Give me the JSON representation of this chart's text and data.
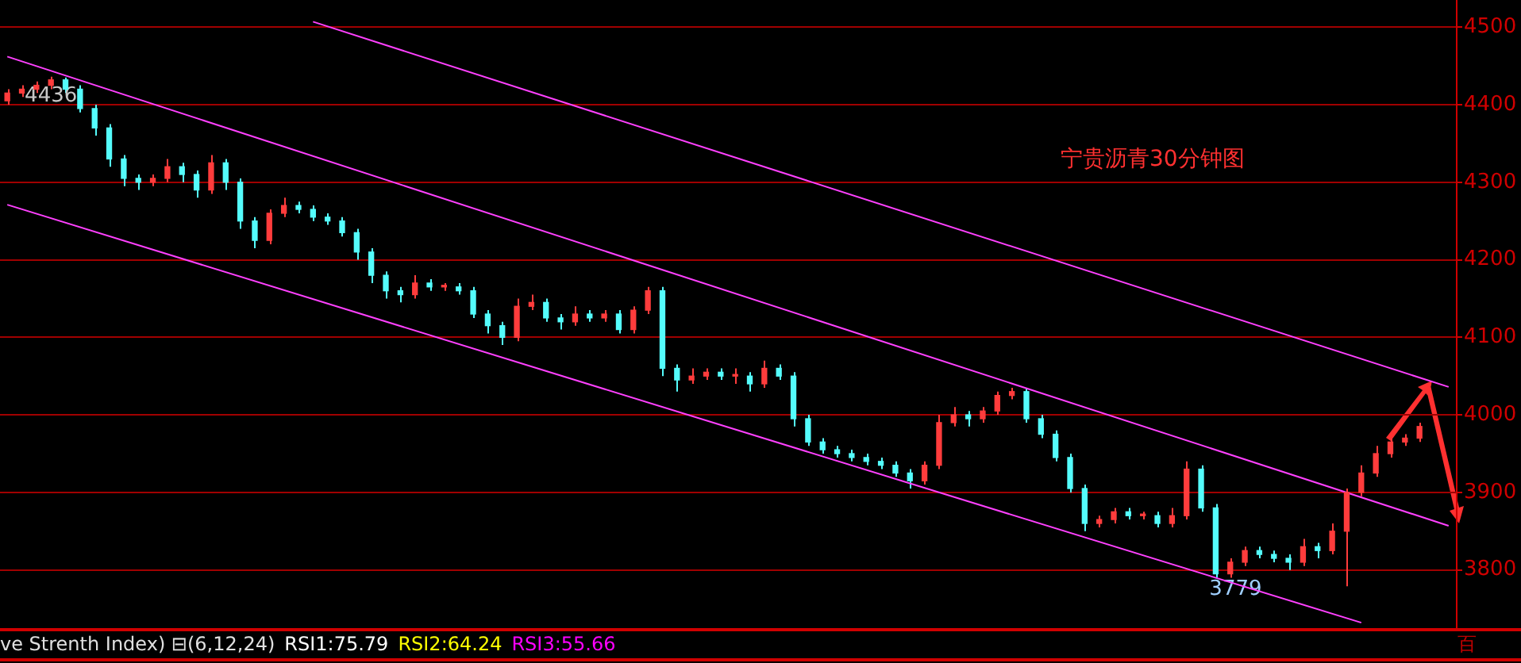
{
  "chart_data": {
    "type": "candlestick",
    "title": "宁贵沥青30分钟图",
    "categories": [
      null,
      null,
      null,
      null,
      null,
      null,
      null,
      null,
      null,
      null,
      null,
      null,
      null,
      null,
      null,
      null,
      null,
      null,
      null,
      null,
      null,
      null,
      null,
      null,
      null,
      null,
      null,
      null,
      null,
      null,
      null,
      null,
      null,
      null,
      null,
      null,
      null,
      null,
      null,
      null,
      null,
      null,
      null,
      null,
      null,
      null,
      null,
      null,
      null,
      null,
      null,
      null,
      null,
      null,
      null,
      null,
      null,
      null,
      null,
      null,
      null,
      null,
      null,
      null,
      null,
      null,
      null,
      null,
      null,
      null,
      null,
      null,
      null,
      null,
      null,
      null,
      null,
      null,
      null,
      null,
      null,
      null,
      null,
      null,
      null,
      null,
      null,
      null,
      null,
      null,
      null,
      null,
      null,
      null,
      null,
      null,
      null,
      null,
      null,
      null
    ],
    "ohlc": [
      [
        4405,
        4420,
        4400,
        4415
      ],
      [
        4415,
        4425,
        4410,
        4420
      ],
      [
        4420,
        4430,
        4415,
        4425
      ],
      [
        4425,
        4436,
        4420,
        4432
      ],
      [
        4432,
        4435,
        4415,
        4420
      ],
      [
        4420,
        4425,
        4390,
        4395
      ],
      [
        4395,
        4400,
        4360,
        4370
      ],
      [
        4370,
        4375,
        4320,
        4330
      ],
      [
        4330,
        4335,
        4295,
        4305
      ],
      [
        4305,
        4310,
        4290,
        4300
      ],
      [
        4300,
        4310,
        4295,
        4305
      ],
      [
        4305,
        4330,
        4300,
        4320
      ],
      [
        4320,
        4325,
        4300,
        4310
      ],
      [
        4310,
        4315,
        4280,
        4290
      ],
      [
        4290,
        4335,
        4285,
        4325
      ],
      [
        4325,
        4330,
        4290,
        4300
      ],
      [
        4300,
        4305,
        4240,
        4250
      ],
      [
        4250,
        4255,
        4215,
        4225
      ],
      [
        4225,
        4265,
        4220,
        4260
      ],
      [
        4260,
        4280,
        4255,
        4270
      ],
      [
        4270,
        4275,
        4260,
        4265
      ],
      [
        4265,
        4270,
        4250,
        4255
      ],
      [
        4255,
        4260,
        4245,
        4250
      ],
      [
        4250,
        4255,
        4230,
        4235
      ],
      [
        4235,
        4240,
        4200,
        4210
      ],
      [
        4210,
        4215,
        4170,
        4180
      ],
      [
        4180,
        4185,
        4150,
        4160
      ],
      [
        4160,
        4165,
        4145,
        4155
      ],
      [
        4155,
        4180,
        4150,
        4170
      ],
      [
        4170,
        4175,
        4160,
        4165
      ],
      [
        4165,
        4170,
        4160,
        4165
      ],
      [
        4165,
        4170,
        4155,
        4160
      ],
      [
        4160,
        4165,
        4125,
        4130
      ],
      [
        4130,
        4135,
        4105,
        4115
      ],
      [
        4115,
        4120,
        4090,
        4100
      ],
      [
        4100,
        4150,
        4095,
        4140
      ],
      [
        4140,
        4155,
        4135,
        4145
      ],
      [
        4145,
        4150,
        4120,
        4125
      ],
      [
        4125,
        4130,
        4110,
        4120
      ],
      [
        4120,
        4140,
        4115,
        4130
      ],
      [
        4130,
        4135,
        4120,
        4125
      ],
      [
        4125,
        4135,
        4120,
        4130
      ],
      [
        4130,
        4135,
        4105,
        4110
      ],
      [
        4110,
        4140,
        4105,
        4135
      ],
      [
        4135,
        4165,
        4130,
        4160
      ],
      [
        4160,
        4165,
        4050,
        4060
      ],
      [
        4060,
        4065,
        4030,
        4045
      ],
      [
        4045,
        4060,
        4040,
        4050
      ],
      [
        4050,
        4060,
        4045,
        4055
      ],
      [
        4055,
        4060,
        4045,
        4050
      ],
      [
        4050,
        4060,
        4040,
        4050
      ],
      [
        4050,
        4055,
        4030,
        4040
      ],
      [
        4040,
        4070,
        4035,
        4060
      ],
      [
        4060,
        4065,
        4045,
        4050
      ],
      [
        4050,
        4055,
        3985,
        3995
      ],
      [
        3995,
        4000,
        3960,
        3965
      ],
      [
        3965,
        3970,
        3950,
        3955
      ],
      [
        3955,
        3960,
        3945,
        3950
      ],
      [
        3950,
        3955,
        3940,
        3945
      ],
      [
        3945,
        3950,
        3935,
        3940
      ],
      [
        3940,
        3945,
        3930,
        3935
      ],
      [
        3935,
        3940,
        3920,
        3925
      ],
      [
        3925,
        3930,
        3905,
        3915
      ],
      [
        3915,
        3940,
        3910,
        3935
      ],
      [
        3935,
        4000,
        3930,
        3990
      ],
      [
        3990,
        4010,
        3985,
        4000
      ],
      [
        4000,
        4005,
        3985,
        3995
      ],
      [
        3995,
        4010,
        3990,
        4005
      ],
      [
        4005,
        4030,
        4000,
        4025
      ],
      [
        4025,
        4035,
        4020,
        4030
      ],
      [
        4030,
        4035,
        3990,
        3995
      ],
      [
        3995,
        4000,
        3970,
        3975
      ],
      [
        3975,
        3980,
        3940,
        3945
      ],
      [
        3945,
        3950,
        3900,
        3905
      ],
      [
        3905,
        3910,
        3850,
        3860
      ],
      [
        3860,
        3870,
        3855,
        3865
      ],
      [
        3865,
        3880,
        3860,
        3875
      ],
      [
        3875,
        3880,
        3865,
        3870
      ],
      [
        3870,
        3875,
        3865,
        3870
      ],
      [
        3870,
        3875,
        3855,
        3860
      ],
      [
        3860,
        3880,
        3855,
        3870
      ],
      [
        3870,
        3940,
        3865,
        3930
      ],
      [
        3930,
        3935,
        3875,
        3880
      ],
      [
        3880,
        3885,
        3790,
        3795
      ],
      [
        3795,
        3815,
        3790,
        3810
      ],
      [
        3810,
        3830,
        3805,
        3825
      ],
      [
        3825,
        3830,
        3815,
        3820
      ],
      [
        3820,
        3825,
        3810,
        3815
      ],
      [
        3815,
        3820,
        3800,
        3810
      ],
      [
        3810,
        3840,
        3805,
        3830
      ],
      [
        3830,
        3835,
        3815,
        3825
      ],
      [
        3825,
        3860,
        3820,
        3850
      ],
      [
        3850,
        3905,
        3779,
        3900
      ],
      [
        3900,
        3935,
        3895,
        3925
      ],
      [
        3925,
        3960,
        3920,
        3950
      ],
      [
        3950,
        3970,
        3945,
        3965
      ],
      [
        3965,
        3975,
        3960,
        3970
      ],
      [
        3970,
        3990,
        3965,
        3985
      ],
      null,
      null
    ],
    "colors": [
      "#ff3c3c",
      "#ff3c3c",
      "#ff3c3c",
      "#ff3c3c",
      "#54fcfc",
      "#54fcfc",
      "#54fcfc",
      "#54fcfc",
      "#54fcfc",
      "#54fcfc",
      "#ff3c3c",
      "#ff3c3c",
      "#54fcfc",
      "#54fcfc",
      "#ff3c3c",
      "#54fcfc",
      "#54fcfc",
      "#54fcfc",
      "#ff3c3c",
      "#ff3c3c",
      "#54fcfc",
      "#54fcfc",
      "#54fcfc",
      "#54fcfc",
      "#54fcfc",
      "#54fcfc",
      "#54fcfc",
      "#54fcfc",
      "#ff3c3c",
      "#54fcfc",
      "#ff3c3c",
      "#54fcfc",
      "#54fcfc",
      "#54fcfc",
      "#54fcfc",
      "#ff3c3c",
      "#ff3c3c",
      "#54fcfc",
      "#54fcfc",
      "#ff3c3c",
      "#54fcfc",
      "#ff3c3c",
      "#54fcfc",
      "#ff3c3c",
      "#ff3c3c",
      "#54fcfc",
      "#54fcfc",
      "#ff3c3c",
      "#ff3c3c",
      "#54fcfc",
      "#ff3c3c",
      "#54fcfc",
      "#ff3c3c",
      "#54fcfc",
      "#54fcfc",
      "#54fcfc",
      "#54fcfc",
      "#54fcfc",
      "#54fcfc",
      "#54fcfc",
      "#54fcfc",
      "#54fcfc",
      "#54fcfc",
      "#ff3c3c",
      "#ff3c3c",
      "#ff3c3c",
      "#54fcfc",
      "#ff3c3c",
      "#ff3c3c",
      "#ff3c3c",
      "#54fcfc",
      "#54fcfc",
      "#54fcfc",
      "#54fcfc",
      "#54fcfc",
      "#ff3c3c",
      "#ff3c3c",
      "#54fcfc",
      "#ff3c3c",
      "#54fcfc",
      "#ff3c3c",
      "#ff3c3c",
      "#54fcfc",
      "#54fcfc",
      "#ff3c3c",
      "#ff3c3c",
      "#54fcfc",
      "#54fcfc",
      "#54fcfc",
      "#ff3c3c",
      "#54fcfc",
      "#ff3c3c",
      "#ff3c3c",
      "#ff3c3c",
      "#ff3c3c",
      "#ff3c3c",
      "#ff3c3c",
      "#ff3c3c",
      null,
      null
    ],
    "series": [
      {
        "type": "line",
        "color": "#ff40ff",
        "values": [
          null,
          null,
          null,
          null,
          null,
          null,
          null,
          null,
          null,
          null,
          null,
          null,
          null,
          null,
          null,
          null,
          null,
          null,
          null,
          null,
          null,
          4507,
          null,
          null,
          null,
          null,
          null,
          null,
          null,
          null,
          null,
          null,
          null,
          null,
          null,
          null,
          null,
          null,
          null,
          null,
          null,
          null,
          null,
          null,
          null,
          null,
          null,
          null,
          null,
          null,
          null,
          null,
          null,
          null,
          null,
          null,
          null,
          null,
          null,
          null,
          null,
          null,
          null,
          null,
          null,
          null,
          null,
          null,
          null,
          null,
          null,
          null,
          null,
          null,
          null,
          null,
          null,
          null,
          null,
          null,
          null,
          null,
          null,
          null,
          null,
          null,
          null,
          null,
          null,
          null,
          null,
          null,
          null,
          null,
          null,
          null,
          null,
          null,
          null,
          4036
        ]
      },
      {
        "type": "line",
        "color": "#ff40ff",
        "values": [
          4462,
          null,
          null,
          null,
          null,
          null,
          null,
          null,
          null,
          null,
          null,
          null,
          null,
          null,
          null,
          null,
          null,
          null,
          null,
          null,
          null,
          null,
          null,
          null,
          null,
          null,
          null,
          null,
          null,
          null,
          null,
          null,
          null,
          null,
          null,
          null,
          null,
          null,
          null,
          null,
          null,
          null,
          null,
          null,
          null,
          null,
          null,
          null,
          null,
          null,
          null,
          null,
          null,
          null,
          null,
          null,
          null,
          null,
          null,
          null,
          null,
          null,
          null,
          null,
          null,
          null,
          null,
          null,
          null,
          null,
          null,
          null,
          null,
          null,
          null,
          null,
          null,
          null,
          null,
          null,
          null,
          null,
          null,
          null,
          null,
          null,
          null,
          null,
          null,
          null,
          null,
          null,
          null,
          null,
          null,
          null,
          null,
          null,
          null,
          3857
        ]
      },
      {
        "type": "line",
        "color": "#ff40ff",
        "values": [
          4271,
          null,
          null,
          null,
          null,
          null,
          null,
          null,
          null,
          null,
          null,
          null,
          null,
          null,
          null,
          null,
          null,
          null,
          null,
          null,
          null,
          null,
          null,
          null,
          null,
          null,
          null,
          null,
          null,
          null,
          null,
          null,
          null,
          null,
          null,
          null,
          null,
          null,
          null,
          null,
          null,
          null,
          null,
          null,
          null,
          null,
          null,
          null,
          null,
          null,
          null,
          null,
          null,
          null,
          null,
          null,
          null,
          null,
          null,
          null,
          null,
          null,
          null,
          null,
          null,
          null,
          null,
          null,
          null,
          null,
          null,
          null,
          null,
          null,
          null,
          null,
          null,
          null,
          null,
          null,
          null,
          null,
          null,
          null,
          null,
          null,
          null,
          null,
          null,
          null,
          null,
          null,
          null,
          3732,
          null,
          null,
          null,
          null,
          null,
          null
        ]
      }
    ],
    "ylim": [
      3725,
      4535
    ],
    "yticks": [
      3800,
      3900,
      4000,
      4100,
      4200,
      4300,
      4400,
      4500
    ],
    "grid": "y",
    "tick_labels": "y",
    "legend": false,
    "annotations": [
      "4436",
      "3779",
      "ve Strenth Index) ⊟(6,12,24)",
      "RSI1:75.79",
      "RSI2:64.24",
      "RSI3:55.66",
      "百"
    ]
  }
}
